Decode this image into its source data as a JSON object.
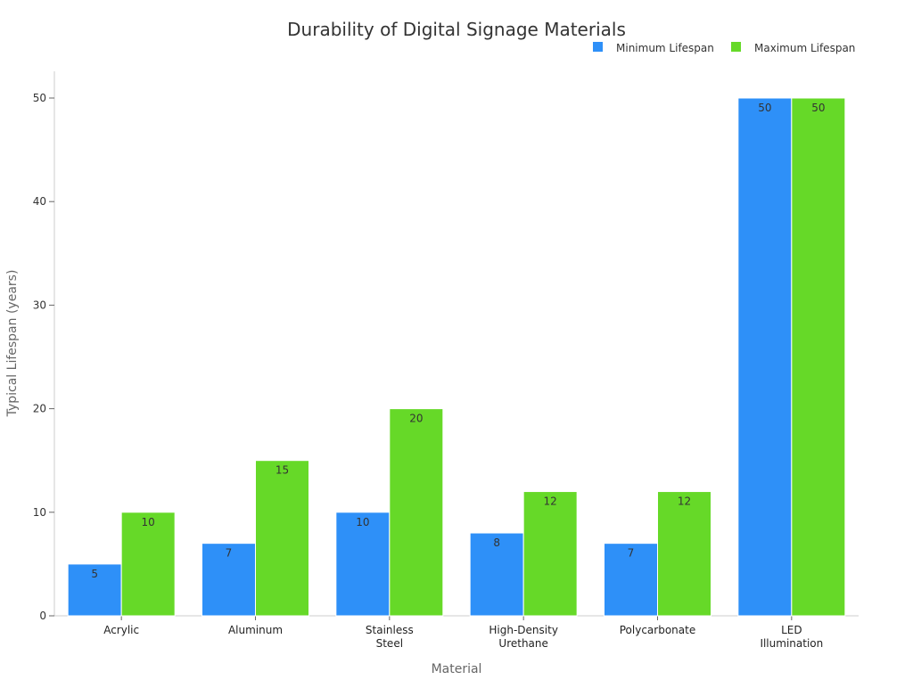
{
  "chart_data": {
    "type": "bar",
    "title": "Durability of Digital Signage Materials",
    "xlabel": "Material",
    "ylabel": "Typical Lifespan (years)",
    "categories": [
      [
        "Acrylic"
      ],
      [
        "Aluminum"
      ],
      [
        "Stainless",
        "Steel"
      ],
      [
        "High-Density",
        "Urethane"
      ],
      [
        "Polycarbonate"
      ],
      [
        "LED",
        "Illumination"
      ]
    ],
    "series": [
      {
        "name": "Minimum Lifespan",
        "color": "#2e90f8",
        "values": [
          5,
          7,
          10,
          8,
          7,
          50
        ]
      },
      {
        "name": "Maximum Lifespan",
        "color": "#66d928",
        "values": [
          10,
          15,
          20,
          12,
          12,
          50
        ]
      }
    ],
    "ylim": [
      0,
      52.5
    ],
    "yticks": [
      0,
      10,
      20,
      30,
      40,
      50
    ],
    "grid": false,
    "legend": "top-right"
  }
}
